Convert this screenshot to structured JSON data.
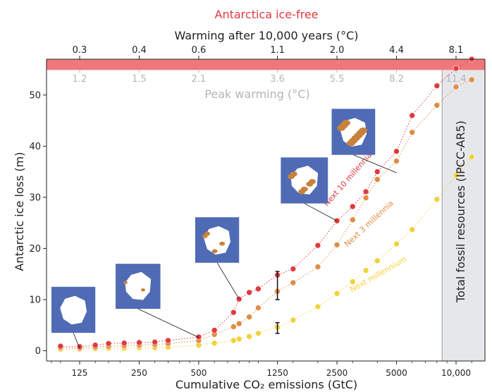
{
  "chart_data": {
    "type": "scatter",
    "title": "Antarctica ice-free",
    "xlabel": "Cumulative CO₂ emissions (GtC)",
    "ylabel": "Antarctic ice loss (m)",
    "x_scale": "log",
    "xlim": [
      85,
      14000
    ],
    "ylim": [
      -2,
      57
    ],
    "x_ticks": [
      125,
      250,
      500,
      1250,
      2500,
      5000,
      10000
    ],
    "x_tick_labels": [
      "125",
      "250",
      "500",
      "1250",
      "2500",
      "5000",
      "10,000"
    ],
    "y_ticks": [
      0,
      10,
      20,
      30,
      40,
      50
    ],
    "top_axis_label": "Warming after 10,000 years (°C)",
    "top_axis_ticks": [
      {
        "x": 125,
        "label": "0.3"
      },
      {
        "x": 250,
        "label": "0.4"
      },
      {
        "x": 500,
        "label": "0.6"
      },
      {
        "x": 1250,
        "label": "1.1"
      },
      {
        "x": 2500,
        "label": "2.0"
      },
      {
        "x": 5000,
        "label": "4.4"
      },
      {
        "x": 10000,
        "label": "8.1"
      }
    ],
    "peak_warming_label": "Peak warming (°C)",
    "peak_warming_ticks": [
      {
        "x": 125,
        "label": "1.2"
      },
      {
        "x": 250,
        "label": "1.5"
      },
      {
        "x": 500,
        "label": "2.1"
      },
      {
        "x": 1250,
        "label": "3.6"
      },
      {
        "x": 2500,
        "label": "5.5"
      },
      {
        "x": 5000,
        "label": "8.2"
      },
      {
        "x": 10000,
        "label": "11.4"
      }
    ],
    "ice_free_band": {
      "y_from": 54.9,
      "y_to": 57,
      "color": "#f0787c"
    },
    "fossil_resources": {
      "label": "Total fossil resources (IPCC-AR5)",
      "x_from": 8500,
      "x_to": 14000,
      "color": "#e6e7ea"
    },
    "series": [
      {
        "name": "Next 10 millennia",
        "color": "#e03a3e",
        "x": [
          100,
          125,
          150,
          175,
          210,
          250,
          300,
          350,
          500,
          600,
          750,
          800,
          900,
          1000,
          1250,
          1500,
          2000,
          2500,
          3000,
          3500,
          4000,
          5000,
          6000,
          8000,
          10000,
          12000
        ],
        "y": [
          0.9,
          0.8,
          1.1,
          1.4,
          1.5,
          1.6,
          1.7,
          2.0,
          2.7,
          4.0,
          7.5,
          10.1,
          11.4,
          12.1,
          14.8,
          16.0,
          20.6,
          25.4,
          28.2,
          31.1,
          35.0,
          39.0,
          46.0,
          51.8,
          55.2,
          57.0
        ]
      },
      {
        "name": "Next 3 millennia",
        "color": "#e08c42",
        "x": [
          100,
          125,
          150,
          175,
          210,
          250,
          300,
          350,
          500,
          600,
          750,
          800,
          900,
          1000,
          1250,
          1500,
          2000,
          2500,
          3000,
          3500,
          4000,
          5000,
          6000,
          8000,
          10000,
          12000
        ],
        "y": [
          0.6,
          0.5,
          0.7,
          0.9,
          1.0,
          1.1,
          1.2,
          1.4,
          2.0,
          3.2,
          4.7,
          5.3,
          6.6,
          8.4,
          11.6,
          13.3,
          16.4,
          20.7,
          25.6,
          29.9,
          33.5,
          37.1,
          42.7,
          48.0,
          51.6,
          53.0
        ]
      },
      {
        "name": "Next millennium",
        "color": "#f2d13c",
        "x": [
          100,
          125,
          150,
          175,
          210,
          250,
          300,
          350,
          500,
          600,
          750,
          800,
          900,
          1000,
          1250,
          1500,
          2000,
          2500,
          3000,
          3500,
          4000,
          5000,
          6000,
          8000,
          10000,
          12000
        ],
        "y": [
          0.3,
          0.3,
          0.4,
          0.5,
          0.5,
          0.6,
          0.6,
          0.7,
          1.1,
          1.5,
          2.0,
          2.3,
          2.8,
          3.4,
          4.6,
          6.0,
          8.6,
          11.2,
          13.5,
          15.7,
          17.6,
          20.9,
          23.7,
          29.6,
          34.3,
          37.9
        ]
      }
    ],
    "series_labels": [
      {
        "series": 0,
        "x": 2900,
        "y": 33.2,
        "angle": -49
      },
      {
        "series": 1,
        "x": 3700,
        "y": 24.5,
        "angle": -43
      },
      {
        "series": 2,
        "x": 4100,
        "y": 14.5,
        "angle": -30
      }
    ],
    "error_bar": {
      "x": 1250,
      "whiskers": [
        [
          10.0,
          15.5
        ],
        [
          3.4,
          5.5
        ]
      ],
      "color": "#111111"
    },
    "map_insets": [
      {
        "x_from": 90,
        "x_to": 150,
        "y_from": 3.5,
        "y_to": 12.5,
        "point_x": 125,
        "point_y": 0.5,
        "color": "#4f6bb5"
      },
      {
        "x_from": 190,
        "x_to": 320,
        "y_from": 8.2,
        "y_to": 17.0,
        "point_x": 500,
        "point_y": 2.6,
        "color": "#4f6bb5"
      },
      {
        "x_from": 480,
        "x_to": 800,
        "y_from": 17.2,
        "y_to": 26.1,
        "point_x": 800,
        "point_y": 10.1,
        "color": "#4f6bb5"
      },
      {
        "x_from": 1300,
        "x_to": 2250,
        "y_from": 28.8,
        "y_to": 37.8,
        "point_x": 2500,
        "point_y": 25.4,
        "color": "#4f6bb5"
      },
      {
        "x_from": 2350,
        "x_to": 3900,
        "y_from": 38.3,
        "y_to": 47.3,
        "point_x": 5000,
        "point_y": 34.8,
        "color": "#4f6bb5"
      }
    ]
  }
}
